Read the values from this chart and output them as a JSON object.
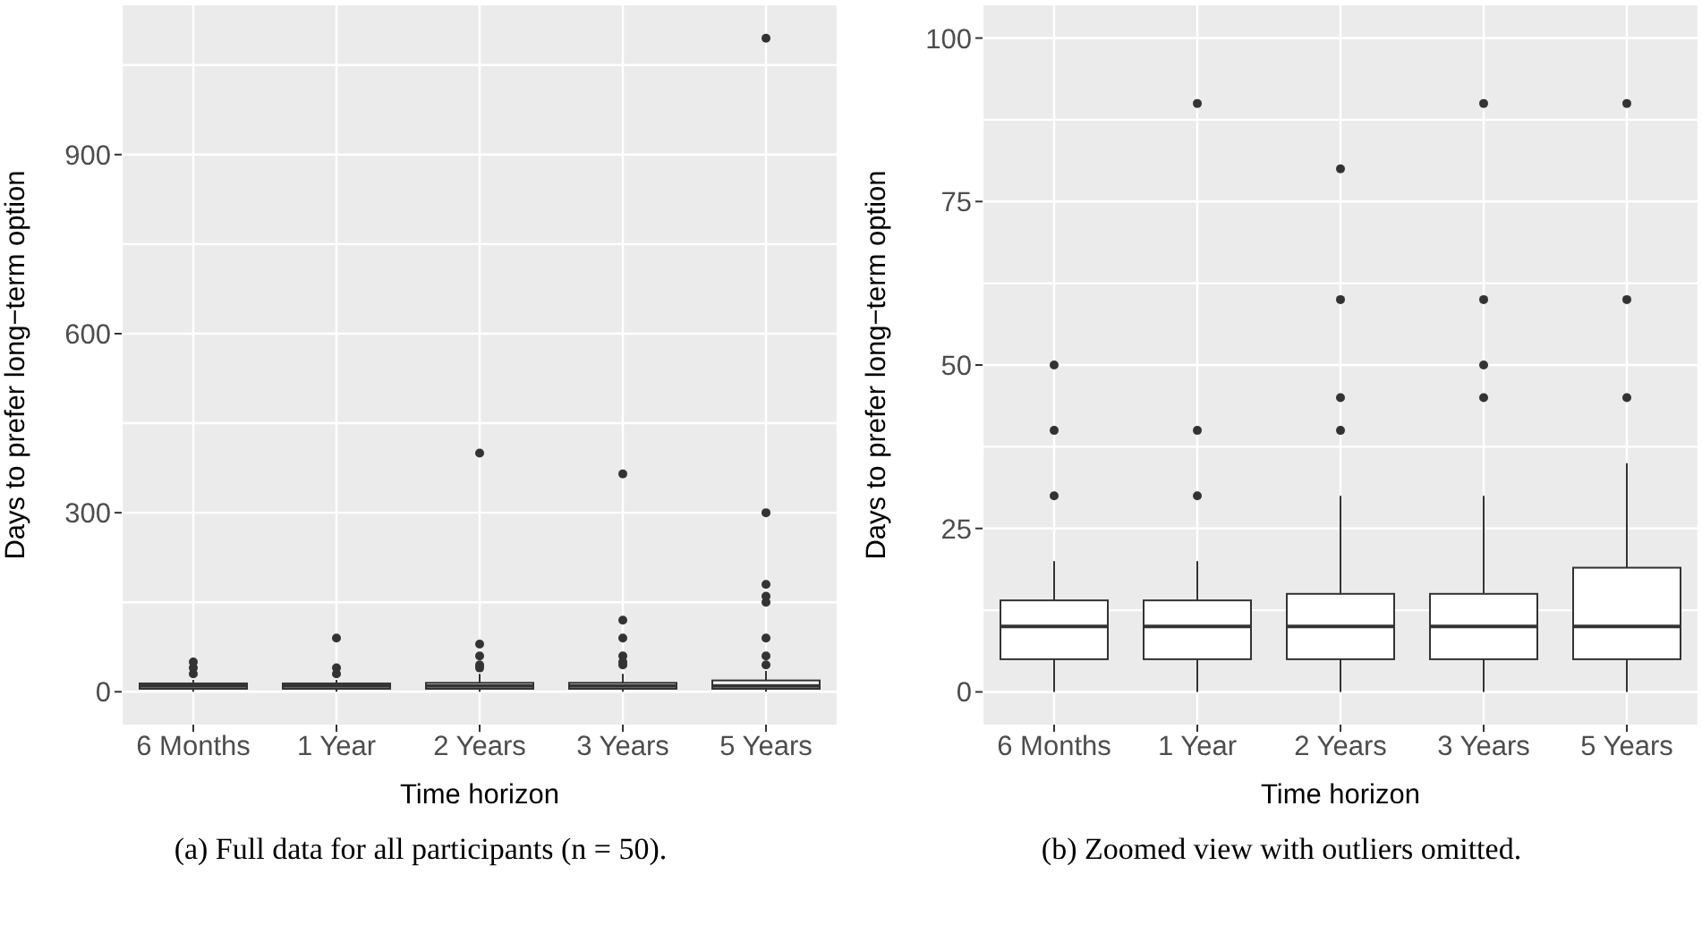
{
  "chart_data": [
    {
      "type": "box",
      "categories": [
        "6 Months",
        "1 Year",
        "2 Years",
        "3 Years",
        "5 Years"
      ],
      "xlabel": "Time horizon",
      "ylabel": "Days to prefer long−term option",
      "ylim": [
        -55,
        1150
      ],
      "yticks": [
        0,
        300,
        600,
        900
      ],
      "grid": true,
      "color": "#333333",
      "annotations": [
        "(a) Full data for all participants (n = 50)."
      ],
      "boxes": [
        {
          "low": 0,
          "q1": 5,
          "median": 10,
          "q3": 14,
          "high": 20,
          "outliers": [
            30,
            40,
            50
          ]
        },
        {
          "low": 0,
          "q1": 5,
          "median": 10,
          "q3": 14,
          "high": 20,
          "outliers": [
            30,
            40,
            90
          ]
        },
        {
          "low": 0,
          "q1": 5,
          "median": 10,
          "q3": 15,
          "high": 30,
          "outliers": [
            40,
            45,
            60,
            80,
            400
          ]
        },
        {
          "low": 0,
          "q1": 5,
          "median": 10,
          "q3": 15,
          "high": 30,
          "outliers": [
            45,
            50,
            60,
            90,
            120,
            365
          ]
        },
        {
          "low": 0,
          "q1": 5,
          "median": 10,
          "q3": 19,
          "high": 35,
          "outliers": [
            45,
            60,
            90,
            150,
            160,
            180,
            300,
            1095
          ]
        }
      ]
    },
    {
      "type": "box",
      "categories": [
        "6 Months",
        "1 Year",
        "2 Years",
        "3 Years",
        "5 Years"
      ],
      "xlabel": "Time horizon",
      "ylabel": "Days to prefer long−term option",
      "ylim": [
        -5,
        105
      ],
      "yticks": [
        0,
        25,
        50,
        75,
        100
      ],
      "grid": true,
      "color": "#333333",
      "annotations": [
        "(b) Zoomed view with outliers omitted."
      ],
      "boxes": [
        {
          "low": 0,
          "q1": 5,
          "median": 10,
          "q3": 14,
          "high": 20,
          "outliers": [
            30,
            40,
            50
          ]
        },
        {
          "low": 0,
          "q1": 5,
          "median": 10,
          "q3": 14,
          "high": 20,
          "outliers": [
            30,
            40,
            90
          ]
        },
        {
          "low": 0,
          "q1": 5,
          "median": 10,
          "q3": 15,
          "high": 30,
          "outliers": [
            40,
            45,
            60,
            80
          ]
        },
        {
          "low": 0,
          "q1": 5,
          "median": 10,
          "q3": 15,
          "high": 30,
          "outliers": [
            45,
            50,
            60,
            90
          ]
        },
        {
          "low": 0,
          "q1": 5,
          "median": 10,
          "q3": 19,
          "high": 35,
          "outliers": [
            45,
            60,
            90
          ]
        }
      ]
    }
  ]
}
